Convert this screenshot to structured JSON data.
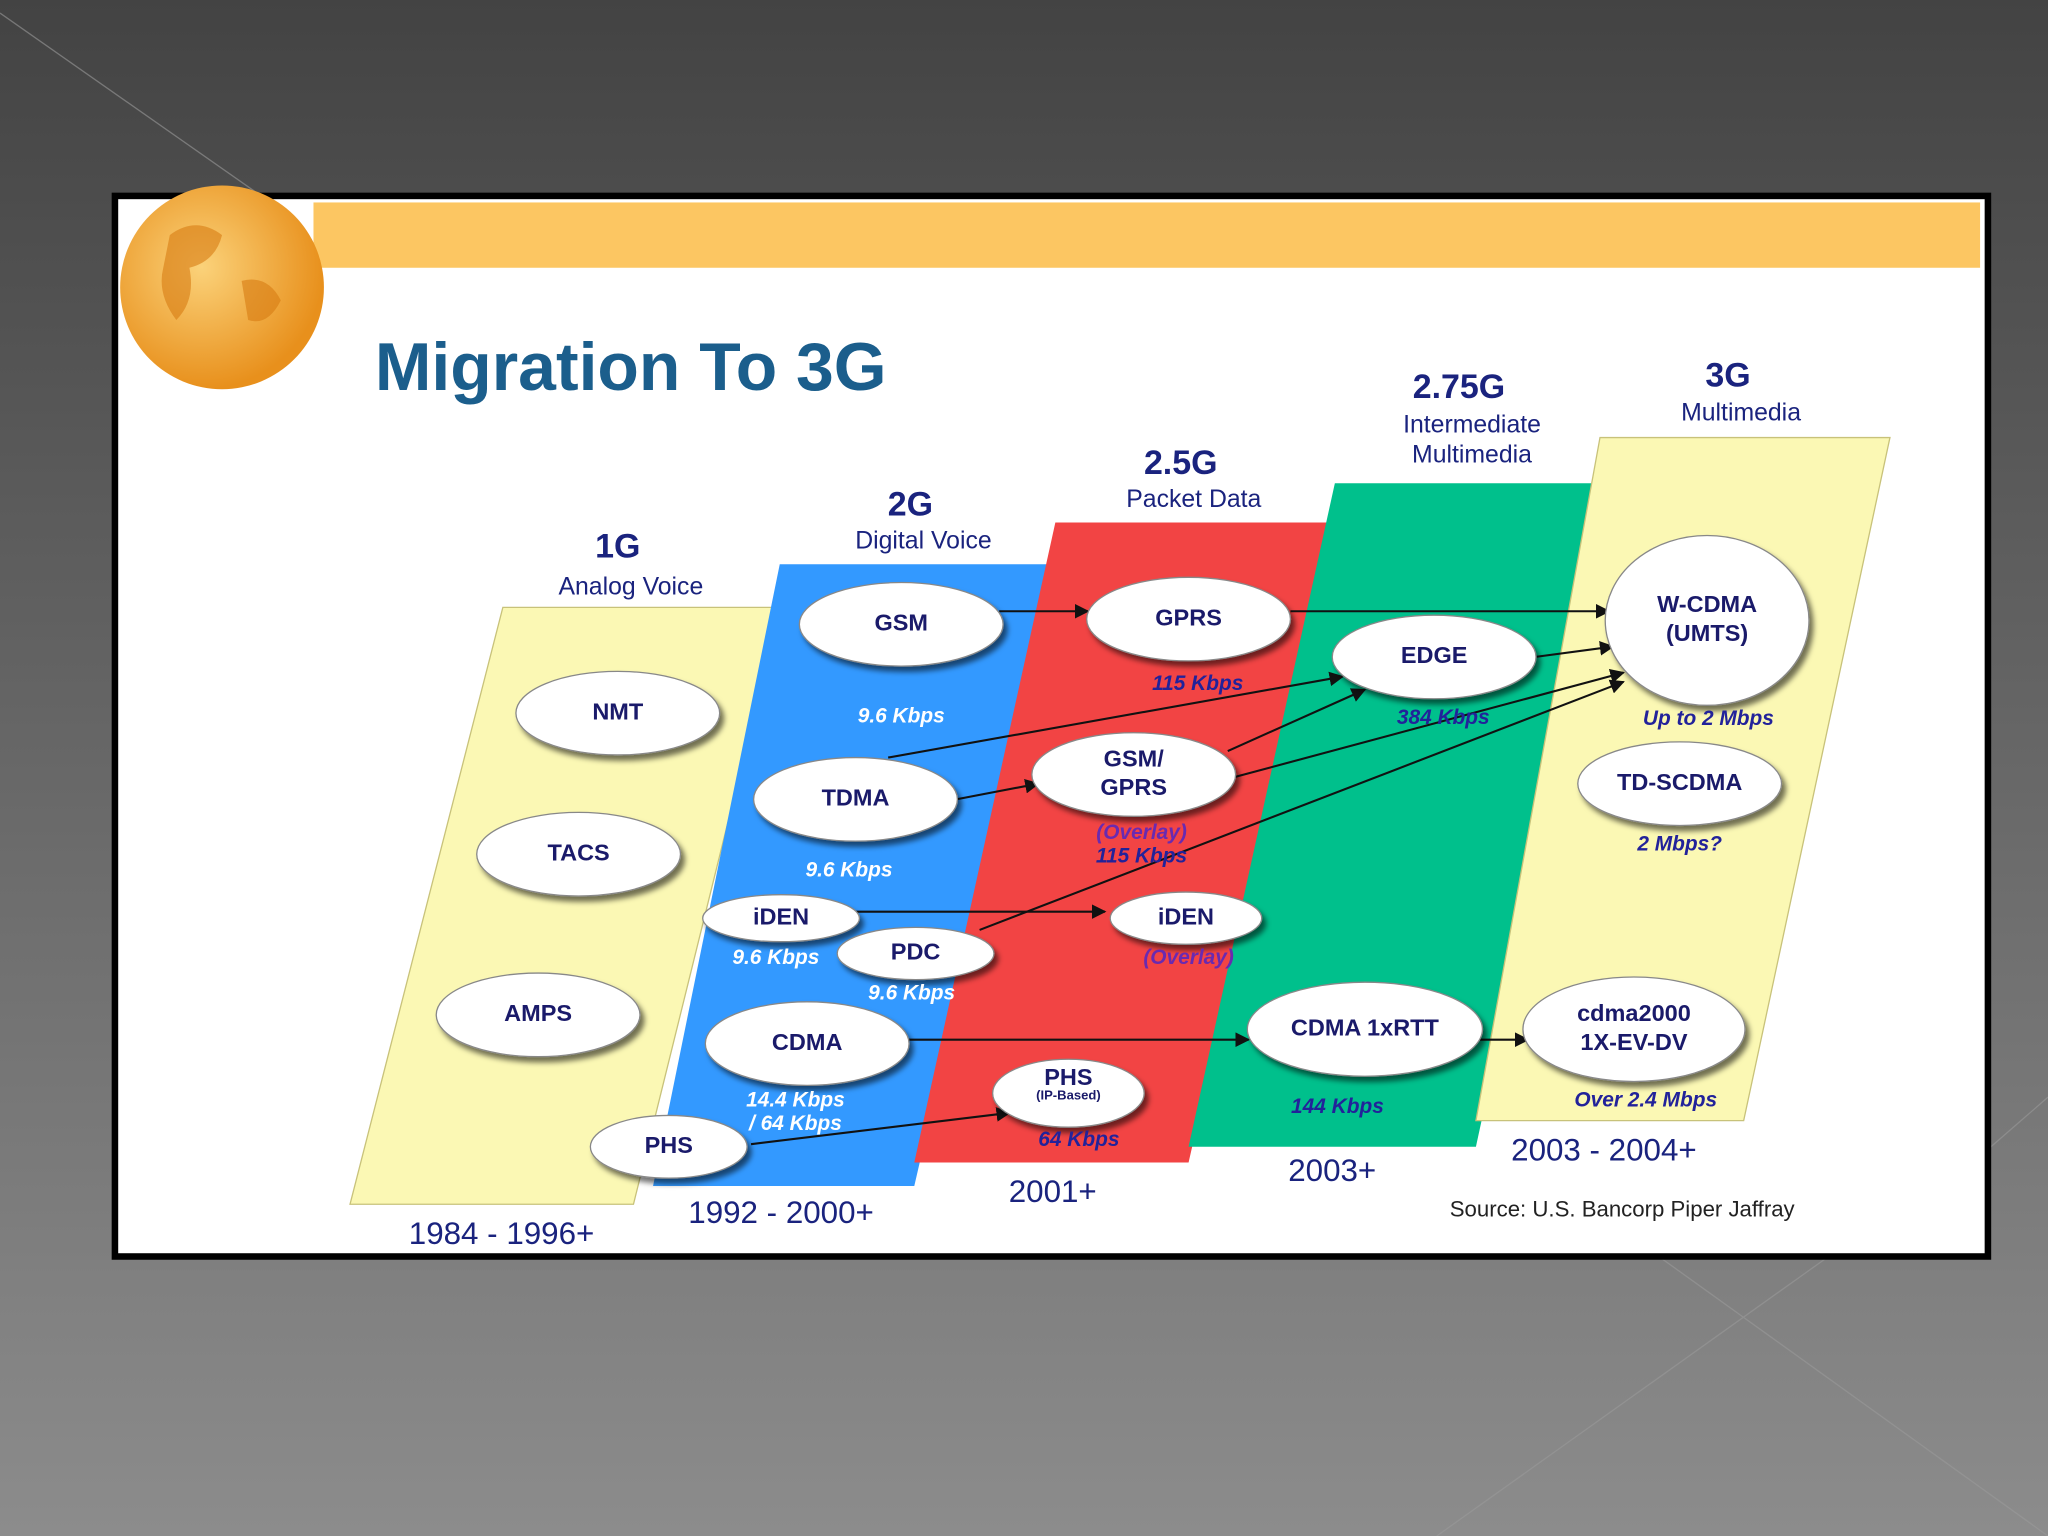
{
  "title": "Migration To 3G",
  "generations": [
    {
      "name": "1G",
      "subtitle": [
        "Analog Voice"
      ],
      "years": "1984 - 1996+"
    },
    {
      "name": "2G",
      "subtitle": [
        "Digital Voice"
      ],
      "years": "1992 - 2000+"
    },
    {
      "name": "2.5G",
      "subtitle": [
        "Packet Data"
      ],
      "years": "2001+"
    },
    {
      "name": "2.75G",
      "subtitle": [
        "Intermediate",
        "Multimedia"
      ],
      "years": "2003+"
    },
    {
      "name": "3G",
      "subtitle": [
        "Multimedia"
      ],
      "years": "2003 - 2004+"
    }
  ],
  "nodes": [
    {
      "label": [
        "NMT"
      ],
      "rate": []
    },
    {
      "label": [
        "TACS"
      ],
      "rate": []
    },
    {
      "label": [
        "AMPS"
      ],
      "rate": []
    },
    {
      "label": [
        "GSM"
      ],
      "rate": [
        "9.6 Kbps"
      ]
    },
    {
      "label": [
        "TDMA"
      ],
      "rate": [
        "9.6 Kbps"
      ]
    },
    {
      "label": [
        "iDEN"
      ],
      "rate": [
        "9.6 Kbps"
      ]
    },
    {
      "label": [
        "PDC"
      ],
      "rate": [
        "9.6 Kbps"
      ]
    },
    {
      "label": [
        "CDMA"
      ],
      "rate": [
        "14.4 Kbps",
        "/ 64 Kbps"
      ]
    },
    {
      "label": [
        "PHS"
      ],
      "rate": []
    },
    {
      "label": [
        "GPRS"
      ],
      "rate": [
        "115 Kbps"
      ]
    },
    {
      "label": [
        "GSM/",
        "GPRS"
      ],
      "rate": [
        "(Overlay)",
        "115 Kbps"
      ]
    },
    {
      "label": [
        "iDEN"
      ],
      "rate": [
        "(Overlay)"
      ]
    },
    {
      "label": [
        "PHS",
        "(IP-Based)"
      ],
      "rate": [
        "64 Kbps"
      ]
    },
    {
      "label": [
        "EDGE"
      ],
      "rate": [
        "384 Kbps"
      ]
    },
    {
      "label": [
        "CDMA 1xRTT"
      ],
      "rate": [
        "144 Kbps"
      ]
    },
    {
      "label": [
        "W-CDMA",
        "(UMTS)"
      ],
      "rate": [
        "Up to 2 Mbps"
      ]
    },
    {
      "label": [
        "TD-SCDMA"
      ],
      "rate": [
        "2 Mbps?"
      ]
    },
    {
      "label": [
        "cdma2000",
        "1X-EV-DV"
      ],
      "rate": [
        "Over 2.4 Mbps"
      ]
    }
  ],
  "source": "Source: U.S. Bancorp Piper Jaffray"
}
